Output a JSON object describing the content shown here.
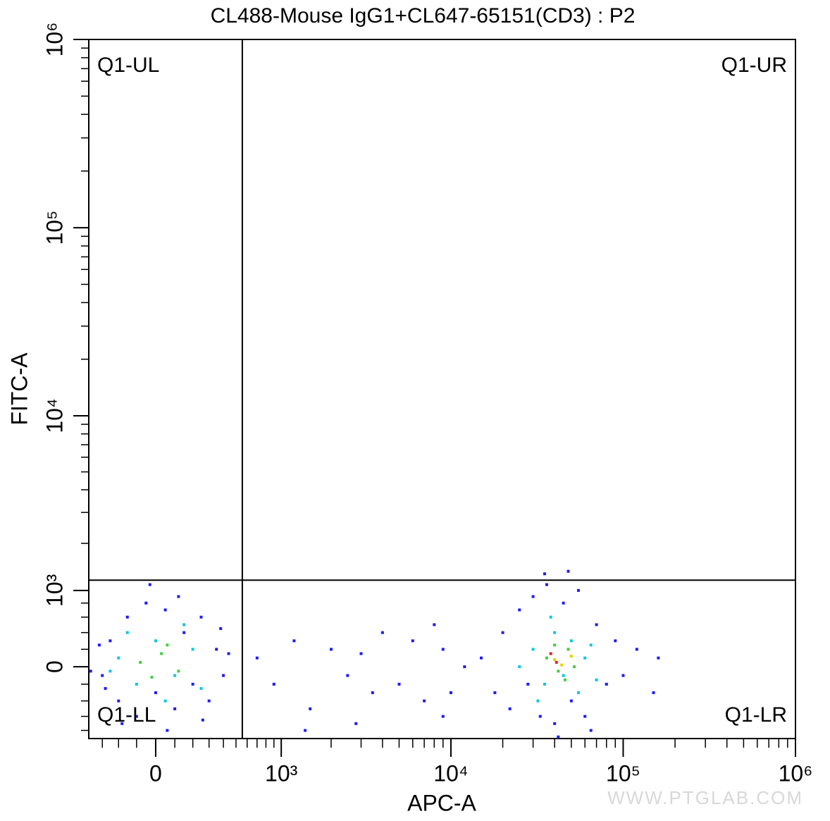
{
  "chart_data": {
    "type": "scatter",
    "title": "CL488-Mouse IgG1+CL647-65151(CD3) : P2",
    "x_label": "APC-A",
    "y_label": "FITC-A",
    "xscale": "biexponential",
    "yscale": "biexponential",
    "xlim": [
      -394,
      1000000
    ],
    "ylim": [
      -926,
      1000000
    ],
    "xticks": [
      {
        "value": 0,
        "label": "0"
      },
      {
        "value": 1000,
        "label": "10³"
      },
      {
        "value": 10000,
        "label": "10⁴"
      },
      {
        "value": 100000,
        "label": "10⁵"
      },
      {
        "value": 1000000,
        "label": "10⁶"
      }
    ],
    "yticks": [
      {
        "value": 0,
        "label": "0"
      },
      {
        "value": 1000,
        "label": "10³"
      },
      {
        "value": 10000,
        "label": "10⁴"
      },
      {
        "value": 100000,
        "label": "10⁵"
      },
      {
        "value": 1000000,
        "label": "10⁶"
      }
    ],
    "xminorticks": [
      -300,
      -200,
      -100,
      100,
      200,
      300,
      400,
      500,
      600,
      700,
      800,
      900,
      2000,
      3000,
      4000,
      5000,
      6000,
      7000,
      8000,
      9000,
      20000,
      30000,
      40000,
      50000,
      60000,
      70000,
      80000,
      90000,
      200000,
      300000,
      400000,
      500000,
      600000,
      700000,
      800000,
      900000
    ],
    "yminorticks": [
      -800,
      -600,
      -400,
      -200,
      200,
      400,
      600,
      800,
      2000,
      3000,
      4000,
      5000,
      6000,
      7000,
      8000,
      9000,
      20000,
      30000,
      40000,
      50000,
      60000,
      70000,
      80000,
      90000,
      200000,
      300000,
      400000,
      500000,
      600000,
      700000,
      800000,
      900000
    ],
    "gates": {
      "x": 555,
      "y": 1180
    },
    "quadrants": [
      "Q1-UL",
      "Q1-UR",
      "Q1-LL",
      "Q1-LR"
    ],
    "watermark": "WWW.PTGLAB.COM",
    "series": [
      {
        "color": "#1a1aff",
        "x": [
          -300,
          -250,
          -200,
          -150,
          -100,
          -50,
          0,
          50,
          100,
          150,
          200,
          250,
          300,
          350,
          400,
          -320,
          -280,
          120,
          -30,
          380,
          -180,
          260,
          60,
          -380,
          440,
          15000,
          18000,
          20000,
          22000,
          25000,
          28000,
          30000,
          33000,
          36000,
          40000,
          45000,
          50000,
          55000,
          60000,
          70000,
          80000,
          90000,
          100000,
          120000,
          150000,
          35000,
          42000,
          48000,
          65000,
          12000,
          10000,
          9000,
          160000,
          700,
          900,
          1200,
          1500,
          2000,
          2500,
          3000,
          3500,
          4000,
          5000,
          6000,
          7000,
          8000,
          9000,
          1400,
          2800
        ],
        "values": [
          -100,
          300,
          -400,
          600,
          -600,
          800,
          -300,
          700,
          -500,
          400,
          -200,
          600,
          -400,
          200,
          -100,
          250,
          -250,
          900,
          1100,
          450,
          -700,
          -650,
          -800,
          -50,
          150,
          100,
          -300,
          400,
          -500,
          700,
          -200,
          900,
          -600,
          1100,
          -700,
          800,
          -400,
          1000,
          -600,
          500,
          -200,
          300,
          -100,
          200,
          -300,
          1300,
          -900,
          1350,
          -800,
          0,
          -300,
          200,
          100,
          100,
          -200,
          300,
          -500,
          200,
          -100,
          150,
          -300,
          400,
          -200,
          300,
          -400,
          500,
          -600,
          -800,
          -700
        ]
      },
      {
        "color": "#00c8e6",
        "x": [
          -200,
          -100,
          0,
          100,
          200,
          -150,
          50,
          150,
          250,
          -250,
          30000,
          35000,
          40000,
          45000,
          50000,
          55000,
          60000,
          38000,
          32000,
          65000,
          25000,
          70000
        ],
        "values": [
          100,
          -200,
          300,
          -100,
          200,
          400,
          -400,
          500,
          -250,
          -50,
          200,
          -200,
          400,
          -100,
          300,
          -300,
          100,
          600,
          -400,
          250,
          0,
          -150
        ]
      },
      {
        "color": "#40d040",
        "x": [
          -80,
          30,
          120,
          -20,
          60,
          36000,
          42000,
          48000,
          52000,
          40000,
          46000
        ],
        "values": [
          50,
          150,
          -50,
          -120,
          250,
          100,
          -50,
          200,
          0,
          250,
          -150
        ]
      },
      {
        "color": "#e8d000",
        "x": [
          40000,
          44000,
          50000
        ],
        "values": [
          80,
          20,
          120
        ]
      },
      {
        "color": "#e82020",
        "x": [
          41000,
          38000
        ],
        "values": [
          50,
          150
        ]
      }
    ]
  }
}
